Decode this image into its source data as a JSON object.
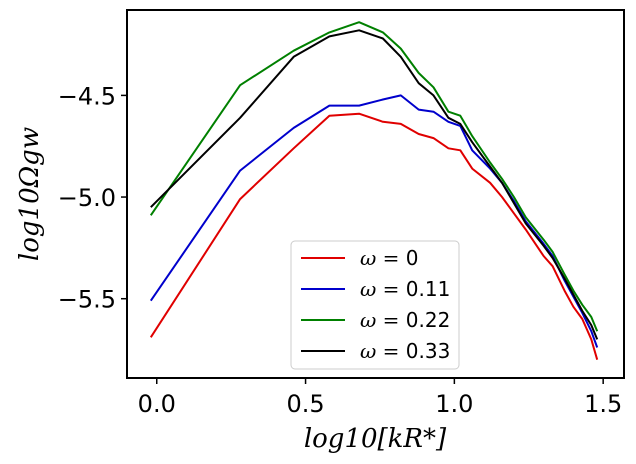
{
  "chart_data": {
    "type": "line",
    "title": "",
    "xlabel": "log10[kR*]",
    "ylabel": "log10Ωgw",
    "xlim": [
      -0.1,
      1.57
    ],
    "ylim": [
      -5.89,
      -4.08
    ],
    "xticks": [
      {
        "value": 0.0,
        "label": "0.0"
      },
      {
        "value": 0.5,
        "label": "0.5"
      },
      {
        "value": 1.0,
        "label": "1.0"
      },
      {
        "value": 1.5,
        "label": "1.5"
      }
    ],
    "yticks": [
      {
        "value": -4.5,
        "label": "−4.5"
      },
      {
        "value": -5.0,
        "label": "−5.0"
      },
      {
        "value": -5.5,
        "label": "−5.5"
      }
    ],
    "grid": false,
    "legend_position": "lower-center",
    "series": [
      {
        "name": "ω = 0",
        "label_prefix": "ω = ",
        "label_value": "0",
        "color": "#e00000",
        "x": [
          -0.02,
          0.28,
          0.46,
          0.58,
          0.68,
          0.76,
          0.82,
          0.88,
          0.93,
          0.98,
          1.02,
          1.06,
          1.12,
          1.16,
          1.2,
          1.24,
          1.3,
          1.33,
          1.37,
          1.4,
          1.43,
          1.46,
          1.48
        ],
        "y": [
          -5.69,
          -5.01,
          -4.76,
          -4.6,
          -4.59,
          -4.63,
          -4.64,
          -4.69,
          -4.71,
          -4.76,
          -4.77,
          -4.86,
          -4.93,
          -5.0,
          -5.08,
          -5.16,
          -5.29,
          -5.34,
          -5.46,
          -5.54,
          -5.6,
          -5.7,
          -5.8
        ]
      },
      {
        "name": "ω = 0.11",
        "label_prefix": "ω = ",
        "label_value": "0.11",
        "color": "#0000cc",
        "x": [
          -0.02,
          0.28,
          0.46,
          0.58,
          0.68,
          0.76,
          0.82,
          0.88,
          0.93,
          0.98,
          1.02,
          1.06,
          1.12,
          1.16,
          1.2,
          1.24,
          1.3,
          1.33,
          1.37,
          1.4,
          1.43,
          1.46,
          1.48
        ],
        "y": [
          -5.51,
          -4.87,
          -4.66,
          -4.55,
          -4.55,
          -4.52,
          -4.5,
          -4.57,
          -4.58,
          -4.63,
          -4.65,
          -4.77,
          -4.86,
          -4.93,
          -5.02,
          -5.12,
          -5.23,
          -5.29,
          -5.41,
          -5.49,
          -5.57,
          -5.66,
          -5.74
        ]
      },
      {
        "name": "ω = 0.22",
        "label_prefix": "ω = ",
        "label_value": "0.22",
        "color": "#008000",
        "x": [
          -0.02,
          0.28,
          0.46,
          0.58,
          0.68,
          0.76,
          0.82,
          0.88,
          0.93,
          0.98,
          1.02,
          1.06,
          1.12,
          1.16,
          1.2,
          1.24,
          1.3,
          1.33,
          1.37,
          1.4,
          1.43,
          1.46,
          1.48
        ],
        "y": [
          -5.09,
          -4.45,
          -4.28,
          -4.19,
          -4.14,
          -4.19,
          -4.27,
          -4.39,
          -4.46,
          -4.58,
          -4.6,
          -4.7,
          -4.83,
          -4.91,
          -5.0,
          -5.1,
          -5.21,
          -5.27,
          -5.38,
          -5.46,
          -5.53,
          -5.59,
          -5.66
        ]
      },
      {
        "name": "ω = 0.33",
        "label_prefix": "ω = ",
        "label_value": "0.33",
        "color": "#000000",
        "x": [
          -0.02,
          0.28,
          0.46,
          0.58,
          0.68,
          0.76,
          0.82,
          0.88,
          0.93,
          0.98,
          1.02,
          1.06,
          1.12,
          1.16,
          1.2,
          1.24,
          1.3,
          1.33,
          1.37,
          1.4,
          1.43,
          1.46,
          1.48
        ],
        "y": [
          -5.05,
          -4.61,
          -4.31,
          -4.21,
          -4.18,
          -4.22,
          -4.31,
          -4.44,
          -4.5,
          -4.61,
          -4.64,
          -4.73,
          -4.85,
          -4.93,
          -5.03,
          -5.13,
          -5.24,
          -5.3,
          -5.4,
          -5.48,
          -5.56,
          -5.63,
          -5.7
        ]
      }
    ]
  }
}
